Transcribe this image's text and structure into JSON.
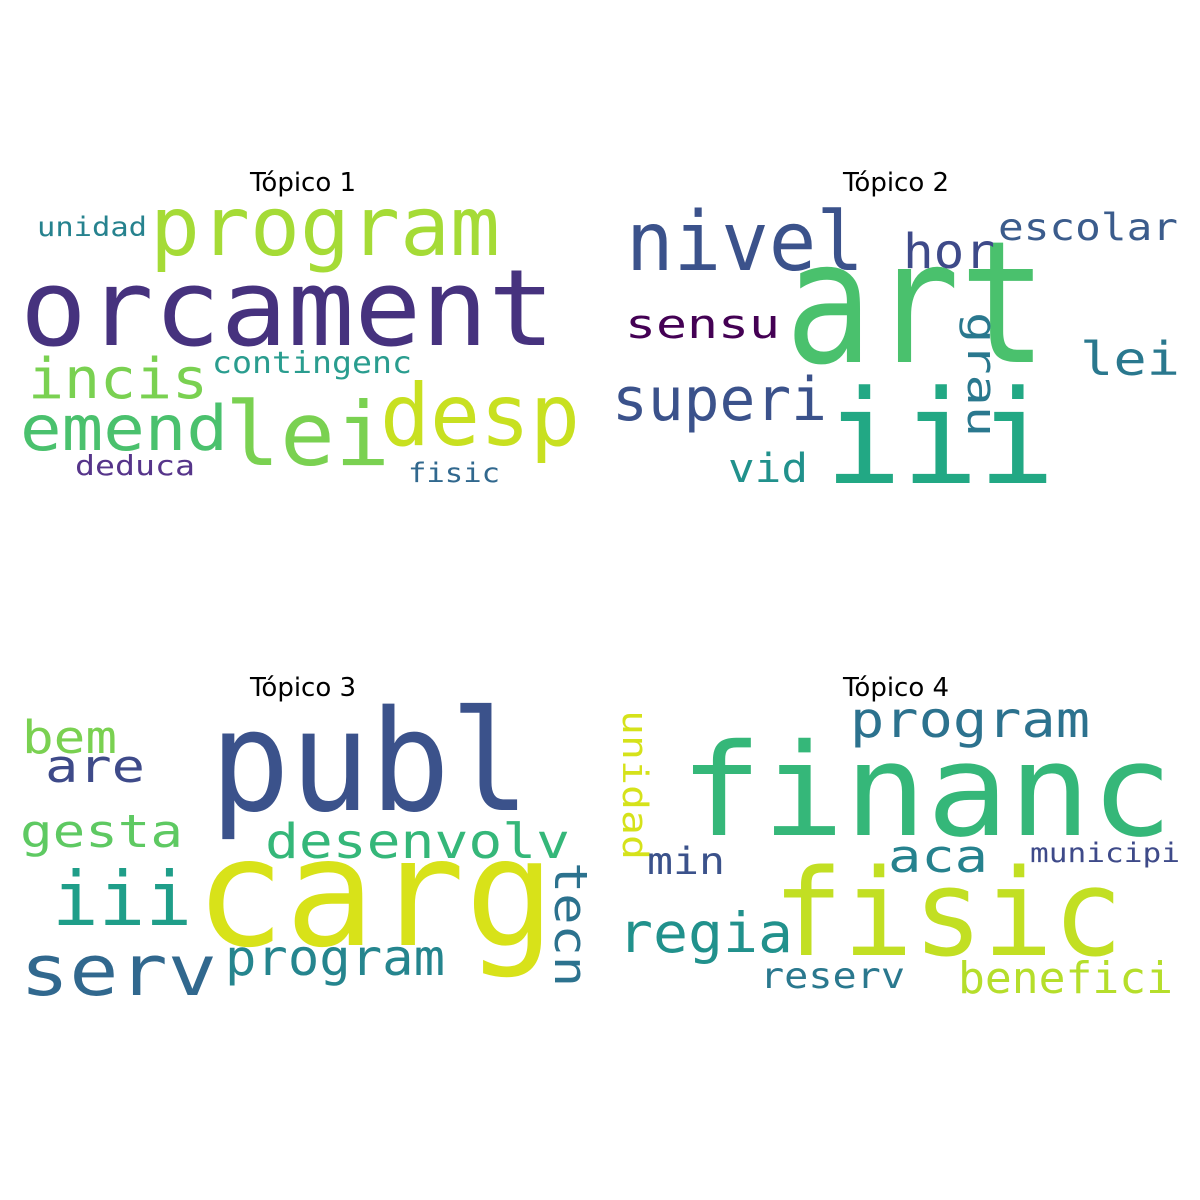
{
  "topics": [
    {
      "title": "Tópico 1",
      "words": [
        {
          "text": "orcament",
          "color": "#46327e"
        },
        {
          "text": "program",
          "color": "#a5db36"
        },
        {
          "text": "desp",
          "color": "#c8e020"
        },
        {
          "text": "lei",
          "color": "#7ad151"
        },
        {
          "text": "emend",
          "color": "#4ac16d"
        },
        {
          "text": "incis",
          "color": "#7ad151"
        },
        {
          "text": "contingenc",
          "color": "#2a9d8f"
        },
        {
          "text": "unidad",
          "color": "#26828e"
        },
        {
          "text": "deduca",
          "color": "#56358a"
        },
        {
          "text": "fisic",
          "color": "#31688e"
        }
      ]
    },
    {
      "title": "Tópico 2",
      "words": [
        {
          "text": "art",
          "color": "#4ac16d"
        },
        {
          "text": "iii",
          "color": "#22a884"
        },
        {
          "text": "nivel",
          "color": "#3b528b"
        },
        {
          "text": "hor",
          "color": "#3e4a89"
        },
        {
          "text": "escolar",
          "color": "#3b5c8c"
        },
        {
          "text": "sensu",
          "color": "#440154"
        },
        {
          "text": "lei",
          "color": "#2a788e"
        },
        {
          "text": "superi",
          "color": "#3b528b"
        },
        {
          "text": "grau",
          "color": "#2a788e"
        },
        {
          "text": "vid",
          "color": "#21918c"
        }
      ]
    },
    {
      "title": "Tópico 3",
      "words": [
        {
          "text": "publ",
          "color": "#3b528b"
        },
        {
          "text": "carg",
          "color": "#d8e219"
        },
        {
          "text": "bem",
          "color": "#7ad151"
        },
        {
          "text": "are",
          "color": "#3e4a89"
        },
        {
          "text": "gesta",
          "color": "#5ec962"
        },
        {
          "text": "desenvolv",
          "color": "#35b779"
        },
        {
          "text": "iii",
          "color": "#1f9e89"
        },
        {
          "text": "serv",
          "color": "#31688e"
        },
        {
          "text": "program",
          "color": "#25858e"
        },
        {
          "text": "tecn",
          "color": "#2c728e"
        }
      ]
    },
    {
      "title": "Tópico 4",
      "words": [
        {
          "text": "financ",
          "color": "#35b779"
        },
        {
          "text": "fisic",
          "color": "#c2df23"
        },
        {
          "text": "program",
          "color": "#2c728e"
        },
        {
          "text": "unidad",
          "color": "#d5e21a"
        },
        {
          "text": "min",
          "color": "#3b528b"
        },
        {
          "text": "aca",
          "color": "#26828e"
        },
        {
          "text": "municipi",
          "color": "#3e4a89"
        },
        {
          "text": "regia",
          "color": "#21918c"
        },
        {
          "text": "reserv",
          "color": "#2a788e"
        },
        {
          "text": "benefici",
          "color": "#b5de2b"
        }
      ]
    }
  ]
}
